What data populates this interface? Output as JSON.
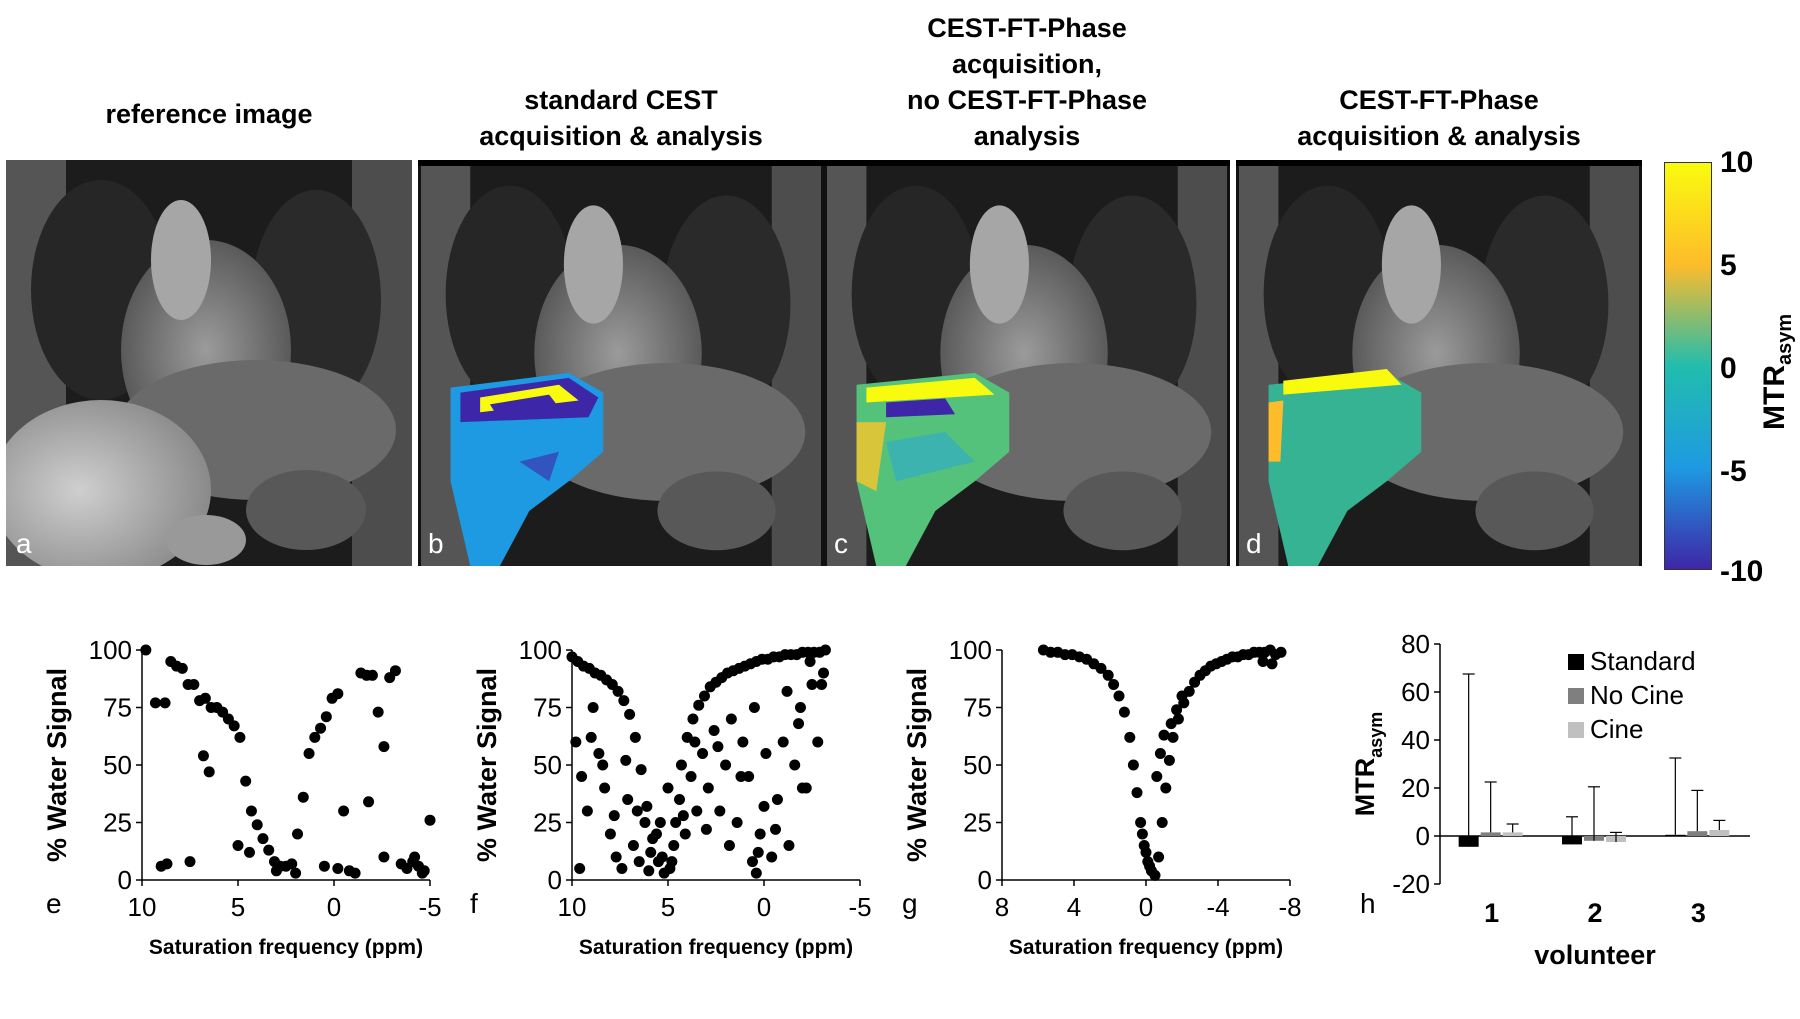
{
  "titles": {
    "a": "reference image",
    "b_line1": "standard CEST",
    "b_line2": "acquisition & analysis",
    "c_line1": "CEST-FT-Phase",
    "c_line2": "acquisition,",
    "c_line3": "no CEST-FT-Phase",
    "c_line4": "analysis",
    "d_line1": "CEST-FT-Phase",
    "d_line2": "acquisition & analysis"
  },
  "panel_letters": {
    "a": "a",
    "b": "b",
    "c": "c",
    "d": "d",
    "e": "e",
    "f": "f",
    "g": "g",
    "h": "h"
  },
  "colorbar": {
    "ticks": [
      "10",
      "5",
      "0",
      "-5",
      "-10"
    ],
    "label_main": "MTR",
    "label_sub": "asym",
    "colors": [
      "#f9fb0e",
      "#febc2a",
      "#21bdad",
      "#1e9ae2",
      "#3e26a8"
    ]
  },
  "chart_data": [
    {
      "type": "scatter",
      "panel": "e",
      "xlabel": "Saturation frequency (ppm)",
      "ylabel": "% Water Signal",
      "xlim": [
        10,
        -5
      ],
      "ylim": [
        0,
        100
      ],
      "xticks": [
        "10",
        "5",
        "0",
        "-5"
      ],
      "yticks": [
        "0",
        "25",
        "50",
        "75",
        "100"
      ],
      "points": [
        [
          9.8,
          100
        ],
        [
          9.3,
          77
        ],
        [
          8.8,
          77
        ],
        [
          8.5,
          95
        ],
        [
          8.2,
          93
        ],
        [
          7.9,
          92
        ],
        [
          7.6,
          85
        ],
        [
          7.3,
          85
        ],
        [
          7.0,
          78
        ],
        [
          6.7,
          79
        ],
        [
          6.4,
          75
        ],
        [
          6.1,
          75
        ],
        [
          5.8,
          73
        ],
        [
          5.5,
          70
        ],
        [
          5.2,
          67
        ],
        [
          4.9,
          62
        ],
        [
          4.6,
          43
        ],
        [
          4.3,
          30
        ],
        [
          4.0,
          24
        ],
        [
          3.7,
          18
        ],
        [
          3.4,
          13
        ],
        [
          3.1,
          8
        ],
        [
          2.8,
          6
        ],
        [
          2.5,
          6
        ],
        [
          2.2,
          7
        ],
        [
          1.9,
          20
        ],
        [
          1.6,
          36
        ],
        [
          1.3,
          55
        ],
        [
          1.0,
          62
        ],
        [
          0.7,
          66
        ],
        [
          0.4,
          71
        ],
        [
          0.1,
          79
        ],
        [
          -0.2,
          81
        ],
        [
          -0.5,
          30
        ],
        [
          -0.8,
          4
        ],
        [
          -1.1,
          3
        ],
        [
          -1.4,
          90
        ],
        [
          -1.7,
          89
        ],
        [
          -2.0,
          89
        ],
        [
          -2.3,
          73
        ],
        [
          -2.6,
          58
        ],
        [
          -2.9,
          88
        ],
        [
          -3.2,
          91
        ],
        [
          -3.5,
          7
        ],
        [
          -3.8,
          5
        ],
        [
          -4.1,
          8
        ],
        [
          -4.4,
          6
        ],
        [
          -4.7,
          4
        ],
        [
          -5.0,
          26
        ],
        [
          9.0,
          6
        ],
        [
          8.7,
          7
        ],
        [
          7.5,
          8
        ],
        [
          6.8,
          54
        ],
        [
          6.5,
          47
        ],
        [
          5.0,
          15
        ],
        [
          4.4,
          12
        ],
        [
          3.0,
          4
        ],
        [
          2.0,
          3
        ],
        [
          0.5,
          6
        ],
        [
          -0.2,
          5
        ],
        [
          -1.8,
          34
        ],
        [
          -2.6,
          10
        ],
        [
          -4.2,
          10
        ],
        [
          -4.6,
          3
        ]
      ]
    },
    {
      "type": "scatter",
      "panel": "f",
      "xlabel": "Saturation frequency (ppm)",
      "ylabel": "% Water Signal",
      "xlim": [
        10,
        -5
      ],
      "ylim": [
        0,
        100
      ],
      "xticks": [
        "10",
        "5",
        "0",
        "-5"
      ],
      "yticks": [
        "0",
        "25",
        "50",
        "75",
        "100"
      ],
      "points": [
        [
          10,
          97
        ],
        [
          9.7,
          95
        ],
        [
          9.4,
          93
        ],
        [
          9.1,
          92
        ],
        [
          8.8,
          90
        ],
        [
          8.5,
          89
        ],
        [
          8.2,
          87
        ],
        [
          7.9,
          85
        ],
        [
          7.6,
          82
        ],
        [
          7.3,
          78
        ],
        [
          7.0,
          72
        ],
        [
          6.7,
          62
        ],
        [
          6.4,
          48
        ],
        [
          6.1,
          32
        ],
        [
          5.8,
          18
        ],
        [
          5.5,
          8
        ],
        [
          5.2,
          3
        ],
        [
          4.9,
          5
        ],
        [
          4.6,
          25
        ],
        [
          4.3,
          50
        ],
        [
          4.0,
          62
        ],
        [
          3.7,
          70
        ],
        [
          3.4,
          76
        ],
        [
          3.1,
          80
        ],
        [
          2.8,
          84
        ],
        [
          2.5,
          86
        ],
        [
          2.2,
          88
        ],
        [
          1.9,
          90
        ],
        [
          1.6,
          91
        ],
        [
          1.3,
          92
        ],
        [
          1.0,
          93
        ],
        [
          0.7,
          94
        ],
        [
          0.4,
          95
        ],
        [
          0.1,
          96
        ],
        [
          -0.2,
          96
        ],
        [
          -0.5,
          97
        ],
        [
          -0.8,
          97
        ],
        [
          -1.1,
          98
        ],
        [
          -1.4,
          98
        ],
        [
          -1.7,
          98
        ],
        [
          -2.0,
          99
        ],
        [
          -2.3,
          99
        ],
        [
          -2.6,
          99
        ],
        [
          -2.9,
          99
        ],
        [
          -3.2,
          100
        ],
        [
          9.8,
          60
        ],
        [
          9.5,
          45
        ],
        [
          9.2,
          30
        ],
        [
          8.9,
          75
        ],
        [
          8.6,
          55
        ],
        [
          8.3,
          40
        ],
        [
          8.0,
          20
        ],
        [
          7.7,
          10
        ],
        [
          7.4,
          5
        ],
        [
          7.1,
          35
        ],
        [
          6.8,
          15
        ],
        [
          6.5,
          8
        ],
        [
          6.2,
          25
        ],
        [
          5.9,
          12
        ],
        [
          5.6,
          20
        ],
        [
          5.3,
          10
        ],
        [
          5.0,
          40
        ],
        [
          4.7,
          15
        ],
        [
          4.4,
          35
        ],
        [
          4.1,
          20
        ],
        [
          3.8,
          45
        ],
        [
          3.5,
          30
        ],
        [
          3.2,
          55
        ],
        [
          2.9,
          40
        ],
        [
          2.6,
          65
        ],
        [
          2.3,
          30
        ],
        [
          2.0,
          50
        ],
        [
          1.7,
          70
        ],
        [
          1.4,
          25
        ],
        [
          1.1,
          60
        ],
        [
          0.8,
          45
        ],
        [
          0.5,
          75
        ],
        [
          0.2,
          20
        ],
        [
          -0.1,
          55
        ],
        [
          -0.4,
          10
        ],
        [
          -0.7,
          35
        ],
        [
          -1.0,
          60
        ],
        [
          -1.3,
          15
        ],
        [
          -1.6,
          50
        ],
        [
          -1.9,
          75
        ],
        [
          -2.2,
          40
        ],
        [
          -2.5,
          85
        ],
        [
          -2.8,
          60
        ],
        [
          -3.1,
          90
        ],
        [
          9.6,
          5
        ],
        [
          9.0,
          62
        ],
        [
          8.4,
          50
        ],
        [
          7.8,
          28
        ],
        [
          7.2,
          52
        ],
        [
          6.6,
          30
        ],
        [
          6.0,
          4
        ],
        [
          5.4,
          25
        ],
        [
          4.8,
          8
        ],
        [
          4.2,
          28
        ],
        [
          3.6,
          60
        ],
        [
          3.0,
          22
        ],
        [
          2.4,
          58
        ],
        [
          1.8,
          15
        ],
        [
          1.2,
          45
        ],
        [
          0.6,
          8
        ],
        [
          0.0,
          32
        ],
        [
          -0.6,
          22
        ],
        [
          -1.2,
          82
        ],
        [
          -1.8,
          68
        ],
        [
          -2.4,
          95
        ],
        [
          -3.0,
          85
        ],
        [
          -2.0,
          40
        ],
        [
          0.4,
          3
        ],
        [
          0.3,
          12
        ]
      ]
    },
    {
      "type": "scatter",
      "panel": "g",
      "xlabel": "Saturation frequency (ppm)",
      "ylabel": "% Water Signal",
      "xlim": [
        8,
        -8
      ],
      "ylim": [
        0,
        100
      ],
      "xticks": [
        "8",
        "4",
        "0",
        "-4",
        "-8"
      ],
      "yticks": [
        "0",
        "25",
        "50",
        "75",
        "100"
      ],
      "points": [
        [
          5.7,
          100
        ],
        [
          5.3,
          99
        ],
        [
          4.9,
          99
        ],
        [
          4.5,
          98
        ],
        [
          4.1,
          98
        ],
        [
          3.7,
          97
        ],
        [
          3.3,
          96
        ],
        [
          2.9,
          94
        ],
        [
          2.5,
          92
        ],
        [
          2.1,
          89
        ],
        [
          1.8,
          85
        ],
        [
          1.5,
          80
        ],
        [
          1.2,
          73
        ],
        [
          0.9,
          62
        ],
        [
          0.7,
          50
        ],
        [
          0.5,
          38
        ],
        [
          0.3,
          25
        ],
        [
          0.1,
          15
        ],
        [
          -0.1,
          8
        ],
        [
          -0.3,
          4
        ],
        [
          -0.5,
          2
        ],
        [
          -0.7,
          10
        ],
        [
          -0.9,
          25
        ],
        [
          -1.1,
          40
        ],
        [
          -1.3,
          52
        ],
        [
          -1.5,
          62
        ],
        [
          -1.8,
          70
        ],
        [
          -2.1,
          77
        ],
        [
          -2.4,
          82
        ],
        [
          -2.7,
          86
        ],
        [
          -3.0,
          89
        ],
        [
          -3.3,
          91
        ],
        [
          -3.6,
          93
        ],
        [
          -3.9,
          94
        ],
        [
          -4.2,
          95
        ],
        [
          -4.5,
          96
        ],
        [
          -4.8,
          97
        ],
        [
          -5.1,
          97
        ],
        [
          -5.4,
          98
        ],
        [
          -5.7,
          98
        ],
        [
          -6.0,
          99
        ],
        [
          -6.3,
          99
        ],
        [
          -6.6,
          99
        ],
        [
          -6.9,
          100
        ],
        [
          -7.2,
          98
        ],
        [
          -7.5,
          99
        ],
        [
          0.2,
          20
        ],
        [
          0.0,
          12
        ],
        [
          -0.2,
          6
        ],
        [
          -0.6,
          45
        ],
        [
          -0.8,
          55
        ],
        [
          -1.0,
          63
        ],
        [
          -1.4,
          68
        ],
        [
          -1.7,
          74
        ],
        [
          -2.0,
          80
        ],
        [
          -6.5,
          95
        ],
        [
          -7.0,
          94
        ]
      ]
    },
    {
      "type": "bar",
      "panel": "h",
      "xlabel": "volunteer",
      "ylabel_main": "MTR",
      "ylabel_sub": "asym",
      "ylim": [
        -20,
        80
      ],
      "yticks": [
        "80",
        "60",
        "40",
        "20",
        "0",
        "-20"
      ],
      "categories": [
        "1",
        "2",
        "3"
      ],
      "legend_placement": "top-right",
      "series": [
        {
          "name": "Standard",
          "color": "#000000",
          "values": [
            -4.5,
            -3.5,
            0.5
          ],
          "errors": [
            72,
            11.5,
            32
          ]
        },
        {
          "name": "No Cine",
          "color": "#7f7f7f",
          "values": [
            1.5,
            -2,
            2
          ],
          "errors": [
            21,
            22.5,
            17
          ]
        },
        {
          "name": "Cine",
          "color": "#c0c0c0",
          "values": [
            1.5,
            -2.5,
            2.5
          ],
          "errors": [
            3.5,
            4,
            4
          ]
        }
      ]
    }
  ]
}
